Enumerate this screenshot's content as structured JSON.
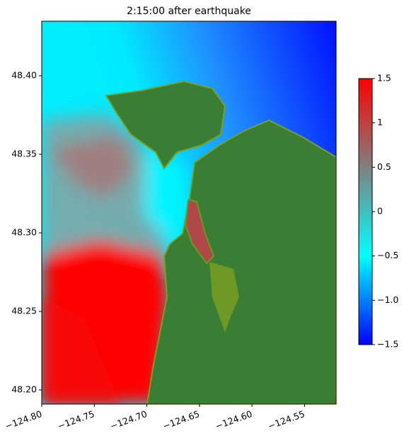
{
  "chart_data": {
    "type": "heatmap",
    "title": "2:15:00 after earthquake",
    "xlim": [
      -124.8,
      -124.52
    ],
    "ylim": [
      48.191,
      48.4347
    ],
    "xticks": [
      {
        "value": -124.8,
        "label": "−124.80"
      },
      {
        "value": -124.75,
        "label": "−124.75"
      },
      {
        "value": -124.7,
        "label": "−124.70"
      },
      {
        "value": -124.65,
        "label": "−124.65"
      },
      {
        "value": -124.6,
        "label": "−124.60"
      },
      {
        "value": -124.55,
        "label": "−124.55"
      }
    ],
    "yticks": [
      {
        "value": 48.2,
        "label": "48.20"
      },
      {
        "value": 48.25,
        "label": "48.25"
      },
      {
        "value": 48.3,
        "label": "48.30"
      },
      {
        "value": 48.35,
        "label": "48.35"
      },
      {
        "value": 48.4,
        "label": "48.40"
      }
    ],
    "clim": [
      -1.5,
      1.5
    ],
    "cticks": [
      {
        "value": -1.5,
        "label": "−1.5"
      },
      {
        "value": -1.0,
        "label": "−1.0"
      },
      {
        "value": -0.5,
        "label": "−0.5"
      },
      0.0,
      0.5,
      1.0,
      1.5
    ],
    "colormap": [
      "#0000ff",
      "#00ffff",
      "#808080",
      "#ff0000"
    ]
  }
}
